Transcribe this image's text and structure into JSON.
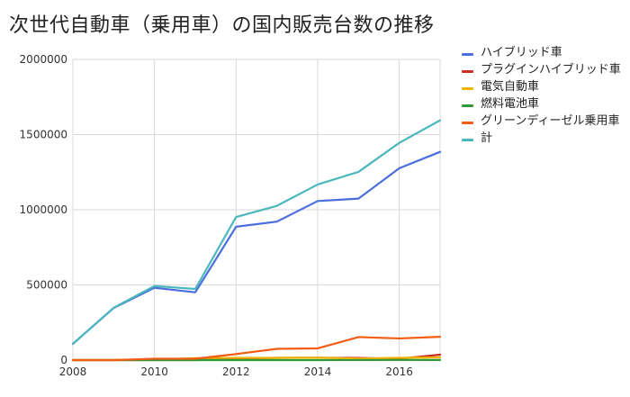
{
  "chart_data": {
    "type": "line",
    "title": "次世代自動車（乗用車）の国内販売台数の推移",
    "xlabel": "",
    "ylabel": "",
    "x": [
      2008,
      2009,
      2010,
      2011,
      2012,
      2013,
      2014,
      2015,
      2016,
      2017
    ],
    "xticks": [
      "2008",
      "2010",
      "2012",
      "2014",
      "2016"
    ],
    "yticks": [
      "2000000",
      "1500000",
      "1000000",
      "500000",
      "0"
    ],
    "xlim": [
      2008,
      2017
    ],
    "ylim": [
      0,
      2000000
    ],
    "grid": true,
    "legend_position": "right",
    "series": [
      {
        "name": "ハイブリッド車",
        "color": "#4a6fdc",
        "values": [
          108000,
          347000,
          481000,
          451000,
          887000,
          921000,
          1058000,
          1074000,
          1276000,
          1385000
        ]
      },
      {
        "name": "プラグインハイブリッド車",
        "color": "#cc2e25",
        "values": [
          0,
          0,
          0,
          0,
          10000,
          15000,
          16000,
          14000,
          9000,
          36000
        ]
      },
      {
        "name": "電気自動車",
        "color": "#f0b400",
        "values": [
          0,
          1000,
          3000,
          13000,
          15000,
          15000,
          16000,
          10000,
          15000,
          18000
        ]
      },
      {
        "name": "燃料電池車",
        "color": "#2e9a36",
        "values": [
          0,
          0,
          0,
          0,
          0,
          0,
          0,
          400,
          1000,
          800
        ]
      },
      {
        "name": "グリーンディーゼル乗用車",
        "color": "#f25c13",
        "values": [
          0,
          0,
          9000,
          9000,
          40000,
          75000,
          78000,
          153000,
          144000,
          155000
        ]
      },
      {
        "name": "計",
        "color": "#4bb7bd",
        "values": [
          108000,
          348000,
          493000,
          473000,
          952000,
          1026000,
          1168000,
          1252000,
          1445000,
          1595000
        ]
      }
    ]
  }
}
